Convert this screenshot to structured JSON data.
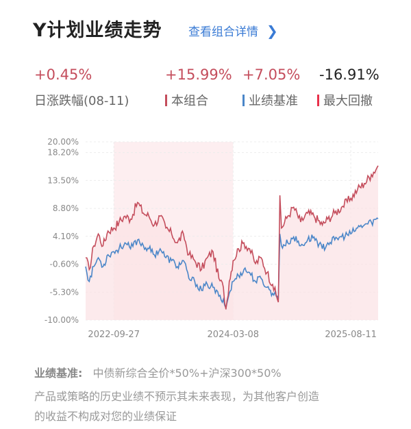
{
  "header": {
    "title": "Y计划业绩走势",
    "detail_link": "查看组合详情"
  },
  "stats": {
    "daily_change": "+0.45%",
    "daily_label": "日涨跌幅(08-11)",
    "portfolio_return": "+15.99%",
    "portfolio_label": "本组合",
    "benchmark_return": "+7.05%",
    "benchmark_label": "业绩基准",
    "max_drawdown": "-16.91%",
    "drawdown_label": "最大回撤"
  },
  "colors": {
    "portfolio": "#c44d5c",
    "benchmark": "#4a86c8",
    "drawdown": "#e8304a",
    "area_fill": "#fbe3e6"
  },
  "chart_data": {
    "type": "line",
    "yticks": [
      "20.00%",
      "18.20%",
      "13.50%",
      "8.80%",
      "4.10%",
      "-0.60%",
      "-5.30%",
      "-10.00%"
    ],
    "ytick_values": [
      20.0,
      18.2,
      13.5,
      8.8,
      4.1,
      -0.6,
      -5.3,
      -10.0
    ],
    "xticks": [
      "2022-09-27",
      "2024-03-08",
      "2025-08-11"
    ],
    "ylim": [
      -10.0,
      20.0
    ],
    "x_range": [
      "2022-05-25",
      "2025-12-10"
    ],
    "drawdown_period": [
      "2022-09-27",
      "2024-03-08"
    ],
    "series": [
      {
        "name": "本组合",
        "color": "#c44d5c",
        "points": [
          [
            "2022-05-25",
            0.5
          ],
          [
            "2022-06-10",
            -1.5
          ],
          [
            "2022-06-30",
            2.5
          ],
          [
            "2022-07-20",
            4.5
          ],
          [
            "2022-08-10",
            2.5
          ],
          [
            "2022-09-01",
            5.0
          ],
          [
            "2022-09-27",
            5.5
          ],
          [
            "2022-10-20",
            6.5
          ],
          [
            "2022-11-15",
            7.5
          ],
          [
            "2022-12-10",
            7.0
          ],
          [
            "2023-01-10",
            9.8
          ],
          [
            "2023-02-05",
            8.0
          ],
          [
            "2023-03-01",
            7.5
          ],
          [
            "2023-03-25",
            6.0
          ],
          [
            "2023-04-20",
            7.5
          ],
          [
            "2023-05-15",
            5.5
          ],
          [
            "2023-06-10",
            4.5
          ],
          [
            "2023-07-05",
            3.0
          ],
          [
            "2023-08-01",
            4.5
          ],
          [
            "2023-08-25",
            1.0
          ],
          [
            "2023-09-20",
            0.0
          ],
          [
            "2023-10-20",
            -1.5
          ],
          [
            "2023-11-15",
            0.5
          ],
          [
            "2023-12-10",
            1.5
          ],
          [
            "2024-01-05",
            -3.0
          ],
          [
            "2024-01-25",
            -4.5
          ],
          [
            "2024-02-05",
            -8.2
          ],
          [
            "2024-02-20",
            -3.5
          ],
          [
            "2024-03-08",
            0.0
          ],
          [
            "2024-04-01",
            2.0
          ],
          [
            "2024-04-25",
            3.0
          ],
          [
            "2024-05-20",
            2.0
          ],
          [
            "2024-06-15",
            -0.5
          ],
          [
            "2024-07-10",
            0.5
          ],
          [
            "2024-08-05",
            -2.0
          ],
          [
            "2024-08-30",
            -4.0
          ],
          [
            "2024-09-20",
            -6.5
          ],
          [
            "2024-09-24",
            -7.0
          ],
          [
            "2024-10-01",
            11.0
          ],
          [
            "2024-10-08",
            5.5
          ],
          [
            "2024-11-05",
            7.5
          ],
          [
            "2024-12-01",
            9.0
          ],
          [
            "2025-01-01",
            6.5
          ],
          [
            "2025-02-01",
            8.0
          ],
          [
            "2025-03-01",
            7.5
          ],
          [
            "2025-04-07",
            6.0
          ],
          [
            "2025-05-01",
            7.0
          ],
          [
            "2025-06-01",
            8.0
          ],
          [
            "2025-07-01",
            9.0
          ],
          [
            "2025-08-11",
            10.5
          ],
          [
            "2025-09-10",
            12.0
          ],
          [
            "2025-10-10",
            13.0
          ],
          [
            "2025-11-10",
            14.5
          ],
          [
            "2025-12-10",
            15.99
          ]
        ]
      },
      {
        "name": "业绩基准",
        "color": "#4a86c8",
        "points": [
          [
            "2022-05-25",
            -1.0
          ],
          [
            "2022-06-10",
            -3.5
          ],
          [
            "2022-06-30",
            -1.0
          ],
          [
            "2022-07-20",
            0.5
          ],
          [
            "2022-08-10",
            -1.0
          ],
          [
            "2022-09-01",
            1.0
          ],
          [
            "2022-09-27",
            1.5
          ],
          [
            "2022-10-20",
            2.0
          ],
          [
            "2022-11-15",
            3.0
          ],
          [
            "2022-12-10",
            2.0
          ],
          [
            "2023-01-10",
            3.5
          ],
          [
            "2023-02-05",
            2.5
          ],
          [
            "2023-03-01",
            2.0
          ],
          [
            "2023-03-25",
            1.0
          ],
          [
            "2023-04-20",
            2.0
          ],
          [
            "2023-05-15",
            0.5
          ],
          [
            "2023-06-10",
            0.0
          ],
          [
            "2023-07-05",
            -1.0
          ],
          [
            "2023-08-01",
            0.0
          ],
          [
            "2023-08-25",
            -3.0
          ],
          [
            "2023-09-20",
            -3.5
          ],
          [
            "2023-10-20",
            -5.0
          ],
          [
            "2023-11-15",
            -4.0
          ],
          [
            "2023-12-10",
            -4.5
          ],
          [
            "2024-01-05",
            -6.0
          ],
          [
            "2024-01-25",
            -6.5
          ],
          [
            "2024-02-05",
            -8.0
          ],
          [
            "2024-02-20",
            -5.5
          ],
          [
            "2024-03-08",
            -3.5
          ],
          [
            "2024-04-01",
            -2.5
          ],
          [
            "2024-04-25",
            -1.5
          ],
          [
            "2024-05-20",
            -2.0
          ],
          [
            "2024-06-15",
            -3.5
          ],
          [
            "2024-07-10",
            -3.0
          ],
          [
            "2024-08-05",
            -4.5
          ],
          [
            "2024-08-30",
            -5.5
          ],
          [
            "2024-09-20",
            -6.0
          ],
          [
            "2024-09-24",
            -6.5
          ],
          [
            "2024-10-01",
            4.5
          ],
          [
            "2024-10-08",
            2.5
          ],
          [
            "2024-11-05",
            3.0
          ],
          [
            "2024-12-01",
            4.0
          ],
          [
            "2025-01-01",
            2.5
          ],
          [
            "2025-02-01",
            3.5
          ],
          [
            "2025-03-01",
            4.0
          ],
          [
            "2025-04-07",
            2.0
          ],
          [
            "2025-05-01",
            3.0
          ],
          [
            "2025-06-01",
            3.5
          ],
          [
            "2025-07-01",
            4.0
          ],
          [
            "2025-08-11",
            4.5
          ],
          [
            "2025-09-10",
            5.5
          ],
          [
            "2025-10-10",
            6.0
          ],
          [
            "2025-11-10",
            6.5
          ],
          [
            "2025-12-10",
            7.05
          ]
        ]
      }
    ]
  },
  "footer": {
    "benchmark_key": "业绩基准:",
    "benchmark_desc": "中债新综合全价*50%+沪深300*50%",
    "disclaimer_line1": "产品或策略的历史业绩不预示其未来表现，为其他客户创造",
    "disclaimer_line2": "的收益不构成对您的业绩保证"
  }
}
